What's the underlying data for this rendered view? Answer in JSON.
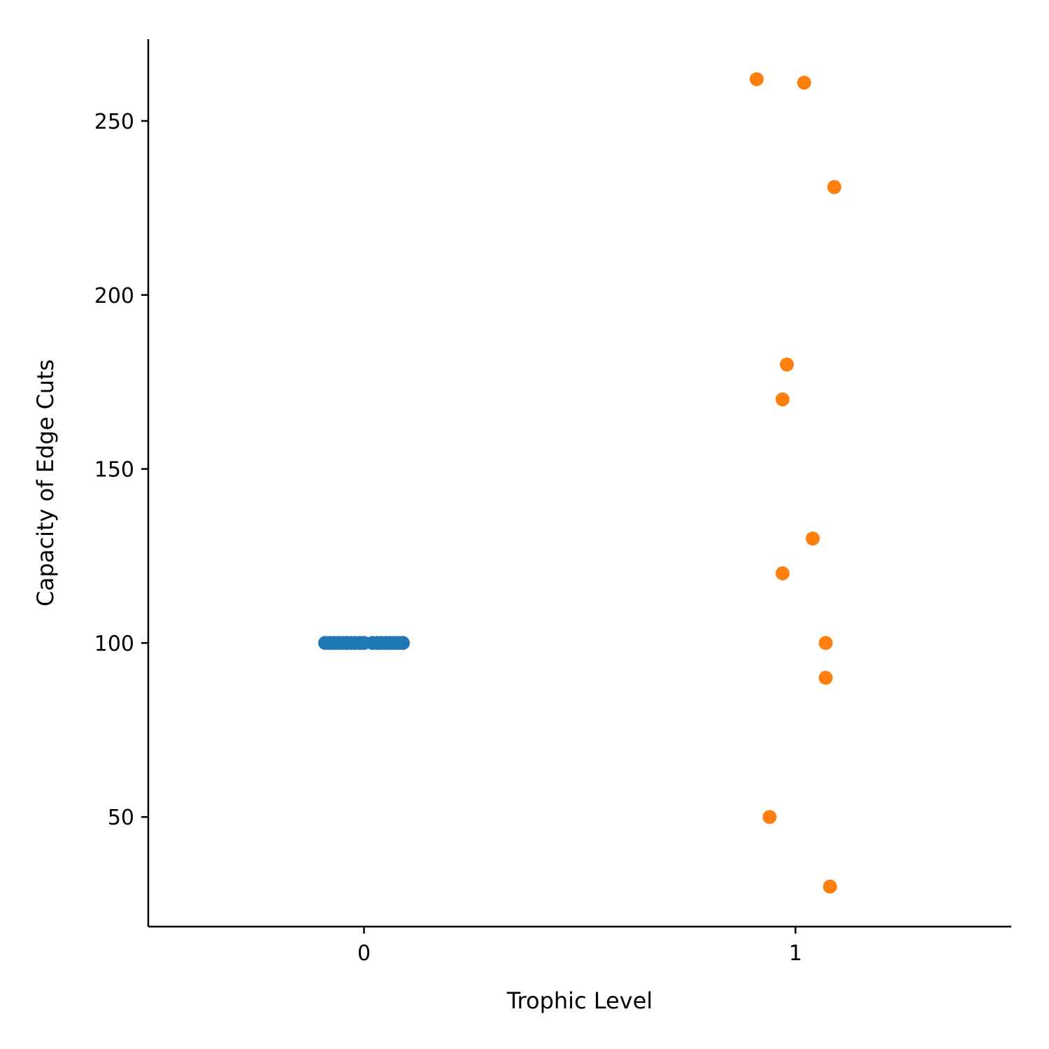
{
  "chart_data": {
    "type": "scatter",
    "title": "",
    "xlabel": "Trophic Level",
    "ylabel": "Capacity of Edge Cuts",
    "xlim": [
      -0.5,
      1.5
    ],
    "ylim": [
      18.5,
      273.5
    ],
    "x_ticks": [
      0,
      1
    ],
    "x_tick_labels": [
      "0",
      "1"
    ],
    "y_ticks": [
      50,
      100,
      150,
      200,
      250
    ],
    "y_tick_labels": [
      "50",
      "100",
      "150",
      "200",
      "250"
    ],
    "grid": false,
    "legend": "none",
    "series": [
      {
        "color": "#1f77b4",
        "points": [
          {
            "x": -0.09,
            "y": 100
          },
          {
            "x": -0.08,
            "y": 100
          },
          {
            "x": -0.07,
            "y": 100
          },
          {
            "x": -0.06,
            "y": 100
          },
          {
            "x": -0.05,
            "y": 100
          },
          {
            "x": -0.04,
            "y": 100
          },
          {
            "x": -0.03,
            "y": 100
          },
          {
            "x": -0.02,
            "y": 100
          },
          {
            "x": -0.01,
            "y": 100
          },
          {
            "x": 0.0,
            "y": 100
          },
          {
            "x": 0.02,
            "y": 100
          },
          {
            "x": 0.03,
            "y": 100
          },
          {
            "x": 0.04,
            "y": 100
          },
          {
            "x": 0.05,
            "y": 100
          },
          {
            "x": 0.06,
            "y": 100
          },
          {
            "x": 0.07,
            "y": 100
          },
          {
            "x": 0.08,
            "y": 100
          },
          {
            "x": 0.09,
            "y": 100
          }
        ]
      },
      {
        "color": "#ff7f0e",
        "points": [
          {
            "x": 0.91,
            "y": 262
          },
          {
            "x": 1.02,
            "y": 261
          },
          {
            "x": 1.09,
            "y": 231
          },
          {
            "x": 0.98,
            "y": 180
          },
          {
            "x": 0.97,
            "y": 170
          },
          {
            "x": 1.04,
            "y": 130
          },
          {
            "x": 0.97,
            "y": 120
          },
          {
            "x": 1.07,
            "y": 100
          },
          {
            "x": 1.07,
            "y": 90
          },
          {
            "x": 0.94,
            "y": 50
          },
          {
            "x": 1.08,
            "y": 30
          }
        ]
      }
    ]
  }
}
